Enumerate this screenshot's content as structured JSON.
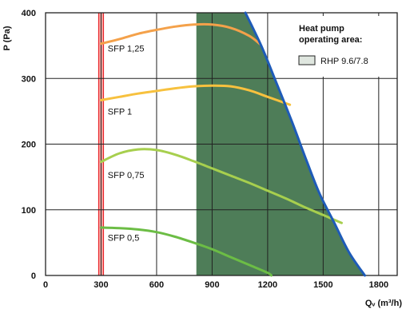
{
  "chart_data": {
    "type": "line",
    "x_axis": {
      "label": "Qᵥ (m³/h)",
      "range": [
        0,
        1900
      ],
      "ticks": [
        0,
        300,
        600,
        900,
        1200,
        1500,
        1800
      ],
      "tick_labels": [
        "0",
        "300",
        "600",
        "900",
        "1200",
        "1500",
        "1800"
      ]
    },
    "y_axis": {
      "label": "P (Pa)",
      "range": [
        0,
        400
      ],
      "ticks": [
        0,
        100,
        200,
        300,
        400
      ],
      "tick_labels": [
        "0",
        "100",
        "200",
        "300",
        "400"
      ]
    },
    "grid": true,
    "min_flow_line": {
      "x": 300,
      "color": "#e8262c",
      "fill": "#f6a8a4"
    },
    "operating_area": {
      "color": "#4e7d58",
      "polygon": [
        [
          815,
          0
        ],
        [
          815,
          400
        ],
        [
          1085,
          400
        ],
        [
          1165,
          350
        ],
        [
          1245,
          295
        ],
        [
          1330,
          235
        ],
        [
          1410,
          175
        ],
        [
          1480,
          125
        ],
        [
          1560,
          80
        ],
        [
          1640,
          35
        ],
        [
          1725,
          0
        ]
      ]
    },
    "max_curve": {
      "color": "#1e5bb8",
      "points": [
        [
          1080,
          400
        ],
        [
          1165,
          350
        ],
        [
          1245,
          295
        ],
        [
          1330,
          235
        ],
        [
          1410,
          175
        ],
        [
          1480,
          125
        ],
        [
          1560,
          80
        ],
        [
          1640,
          35
        ],
        [
          1725,
          0
        ]
      ]
    },
    "series": [
      {
        "name": "SFP 1,25",
        "color": "#f4a14a",
        "label_at": [
          310,
          346
        ],
        "points": [
          [
            300,
            353
          ],
          [
            400,
            360
          ],
          [
            500,
            368
          ],
          [
            600,
            374
          ],
          [
            700,
            379
          ],
          [
            800,
            382
          ],
          [
            900,
            382
          ],
          [
            1000,
            377
          ],
          [
            1100,
            365
          ],
          [
            1160,
            352
          ]
        ]
      },
      {
        "name": "SFP 1",
        "color": "#f7c13e",
        "label_at": [
          310,
          250
        ],
        "points": [
          [
            300,
            267
          ],
          [
            400,
            272
          ],
          [
            500,
            277
          ],
          [
            600,
            281
          ],
          [
            700,
            285
          ],
          [
            800,
            288
          ],
          [
            900,
            289
          ],
          [
            1000,
            288
          ],
          [
            1100,
            282
          ],
          [
            1200,
            272
          ],
          [
            1320,
            260
          ]
        ]
      },
      {
        "name": "SFP 0,75",
        "color": "#a7cf4e",
        "label_at": [
          310,
          153
        ],
        "points": [
          [
            300,
            173
          ],
          [
            400,
            186
          ],
          [
            500,
            192
          ],
          [
            600,
            191
          ],
          [
            700,
            184
          ],
          [
            800,
            174
          ],
          [
            900,
            163
          ],
          [
            1000,
            152
          ],
          [
            1100,
            141
          ],
          [
            1200,
            129
          ],
          [
            1300,
            117
          ],
          [
            1400,
            104
          ],
          [
            1500,
            92
          ],
          [
            1600,
            80
          ]
        ]
      },
      {
        "name": "SFP 0,5",
        "color": "#6cbd45",
        "label_at": [
          310,
          58
        ],
        "points": [
          [
            300,
            73
          ],
          [
            400,
            72
          ],
          [
            500,
            70
          ],
          [
            600,
            66
          ],
          [
            700,
            59
          ],
          [
            800,
            50
          ],
          [
            900,
            40
          ],
          [
            1000,
            28
          ],
          [
            1100,
            16
          ],
          [
            1200,
            4
          ],
          [
            1220,
            0
          ]
        ]
      }
    ],
    "legend": {
      "title_lines": [
        "Heat pump",
        "operating area:"
      ],
      "entries": [
        {
          "label": "RHP 9.6/7.8",
          "color": "#4e7d58"
        }
      ],
      "placement": "top-right"
    }
  }
}
